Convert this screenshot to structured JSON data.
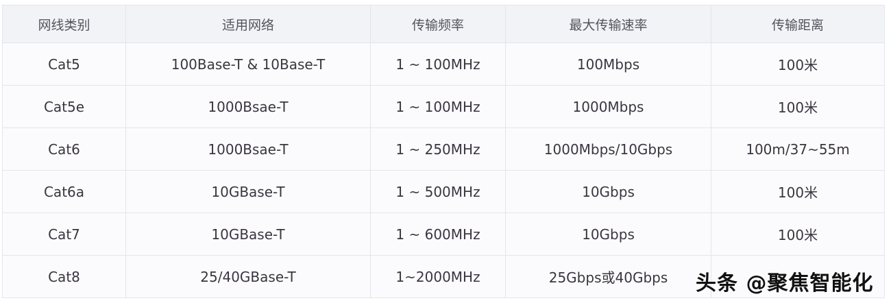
{
  "table": {
    "headers": [
      "网线类别",
      "适用网络",
      "传输频率",
      "最大传输速率",
      "传输距离"
    ],
    "rows": [
      [
        "Cat5",
        "100Base-T & 10Base-T",
        "1 ~ 100MHz",
        "100Mbps",
        "100米"
      ],
      [
        "Cat5e",
        "1000Bsae-T",
        "1 ~ 100MHz",
        "1000Mbps",
        "100米"
      ],
      [
        "Cat6",
        "1000Bsae-T",
        "1 ~ 250MHz",
        "1000Mbps/10Gbps",
        "100m/37~55m"
      ],
      [
        "Cat6a",
        "10GBase-T",
        "1 ~ 500MHz",
        "10Gbps",
        "100米"
      ],
      [
        "Cat7",
        "10GBase-T",
        "1 ~ 600MHz",
        "10Gbps",
        "100米"
      ],
      [
        "Cat8",
        "25/40GBase-T",
        "1~2000MHz",
        "25Gbps或40Gbps",
        ""
      ]
    ]
  },
  "watermark": "头条 @聚焦智能化"
}
